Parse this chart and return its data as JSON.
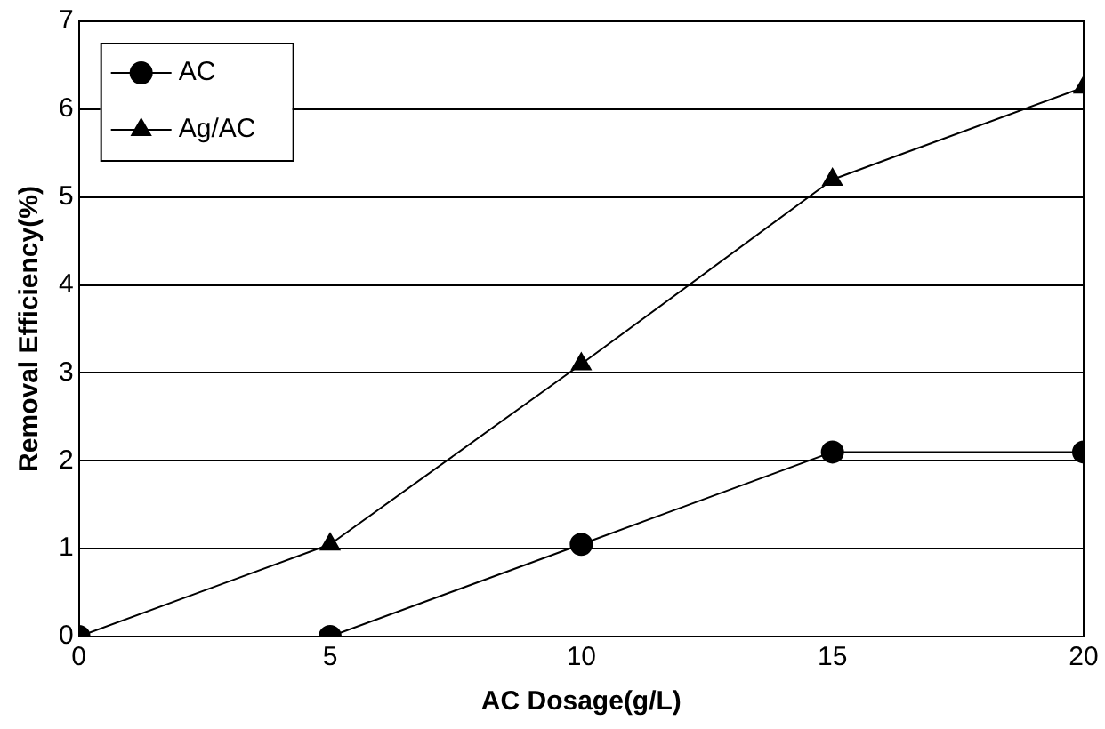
{
  "chart_data": {
    "type": "line",
    "xlabel": "AC Dosage(g/L)",
    "ylabel": "Removal Efficiency(%)",
    "x": [
      0,
      5,
      10,
      15,
      20
    ],
    "series": [
      {
        "name": "AC",
        "color": "#000000",
        "marker": "circle",
        "values": [
          0,
          0,
          1.05,
          2.1,
          2.1
        ]
      },
      {
        "name": "Ag/AC",
        "color": "#000000",
        "marker": "triangle",
        "values": [
          0,
          1.05,
          3.1,
          5.2,
          6.25
        ]
      }
    ],
    "xlim": [
      0,
      20
    ],
    "xticks": [
      0,
      5,
      10,
      15,
      20
    ],
    "ylim": [
      0,
      7
    ],
    "yticks": [
      0,
      1,
      2,
      3,
      4,
      5,
      6,
      7
    ],
    "grid": "y",
    "legend": "top left",
    "line_style": "solid"
  }
}
